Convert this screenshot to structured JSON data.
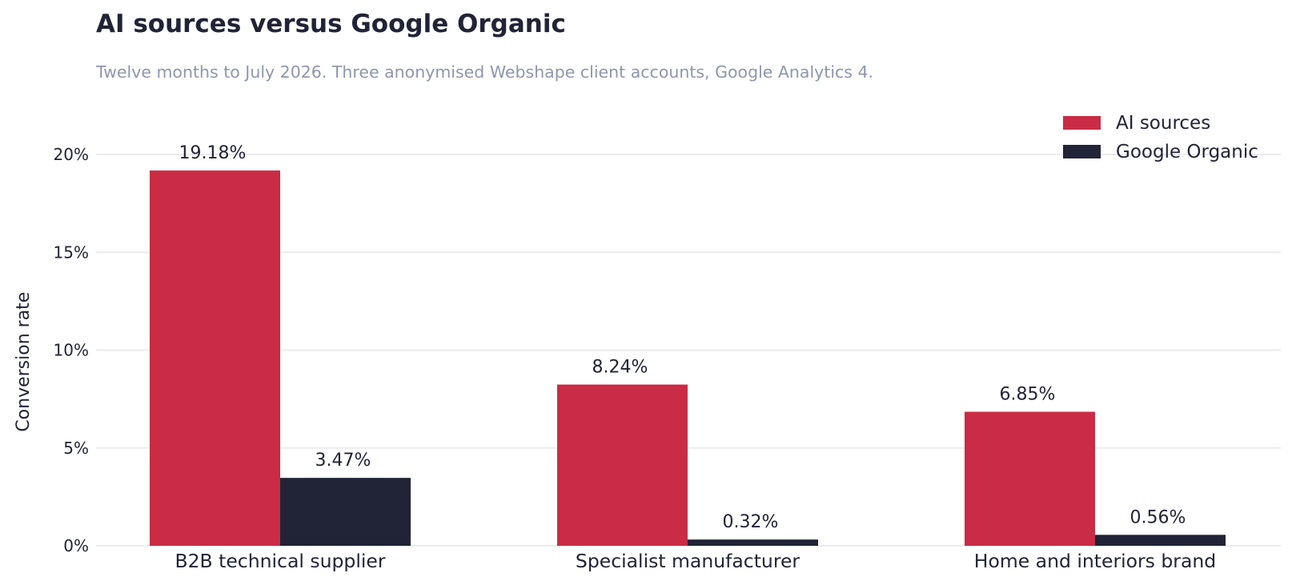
{
  "chart_data": {
    "type": "bar",
    "title": "AI sources versus Google Organic",
    "subtitle": "Twelve months to July 2026. Three anonymised Webshape client accounts, Google Analytics 4.",
    "ylabel": "Conversion rate",
    "xlabel": "",
    "ylim": [
      0,
      20.5
    ],
    "yticks": [
      0,
      5,
      10,
      15,
      20
    ],
    "ytick_labels": [
      "0%",
      "5%",
      "10%",
      "15%",
      "20%"
    ],
    "categories": [
      "B2B technical supplier",
      "Specialist manufacturer",
      "Home and interiors brand"
    ],
    "series": [
      {
        "name": "AI sources",
        "color": "#c92c44",
        "values": [
          19.18,
          8.24,
          6.85
        ],
        "value_labels": [
          "19.18%",
          "8.24%",
          "6.85%"
        ]
      },
      {
        "name": "Google Organic",
        "color": "#212336",
        "values": [
          3.47,
          0.32,
          0.56
        ],
        "value_labels": [
          "3.47%",
          "0.32%",
          "0.56%"
        ]
      }
    ],
    "grid": "horizontal",
    "legend_position": "top-right"
  }
}
